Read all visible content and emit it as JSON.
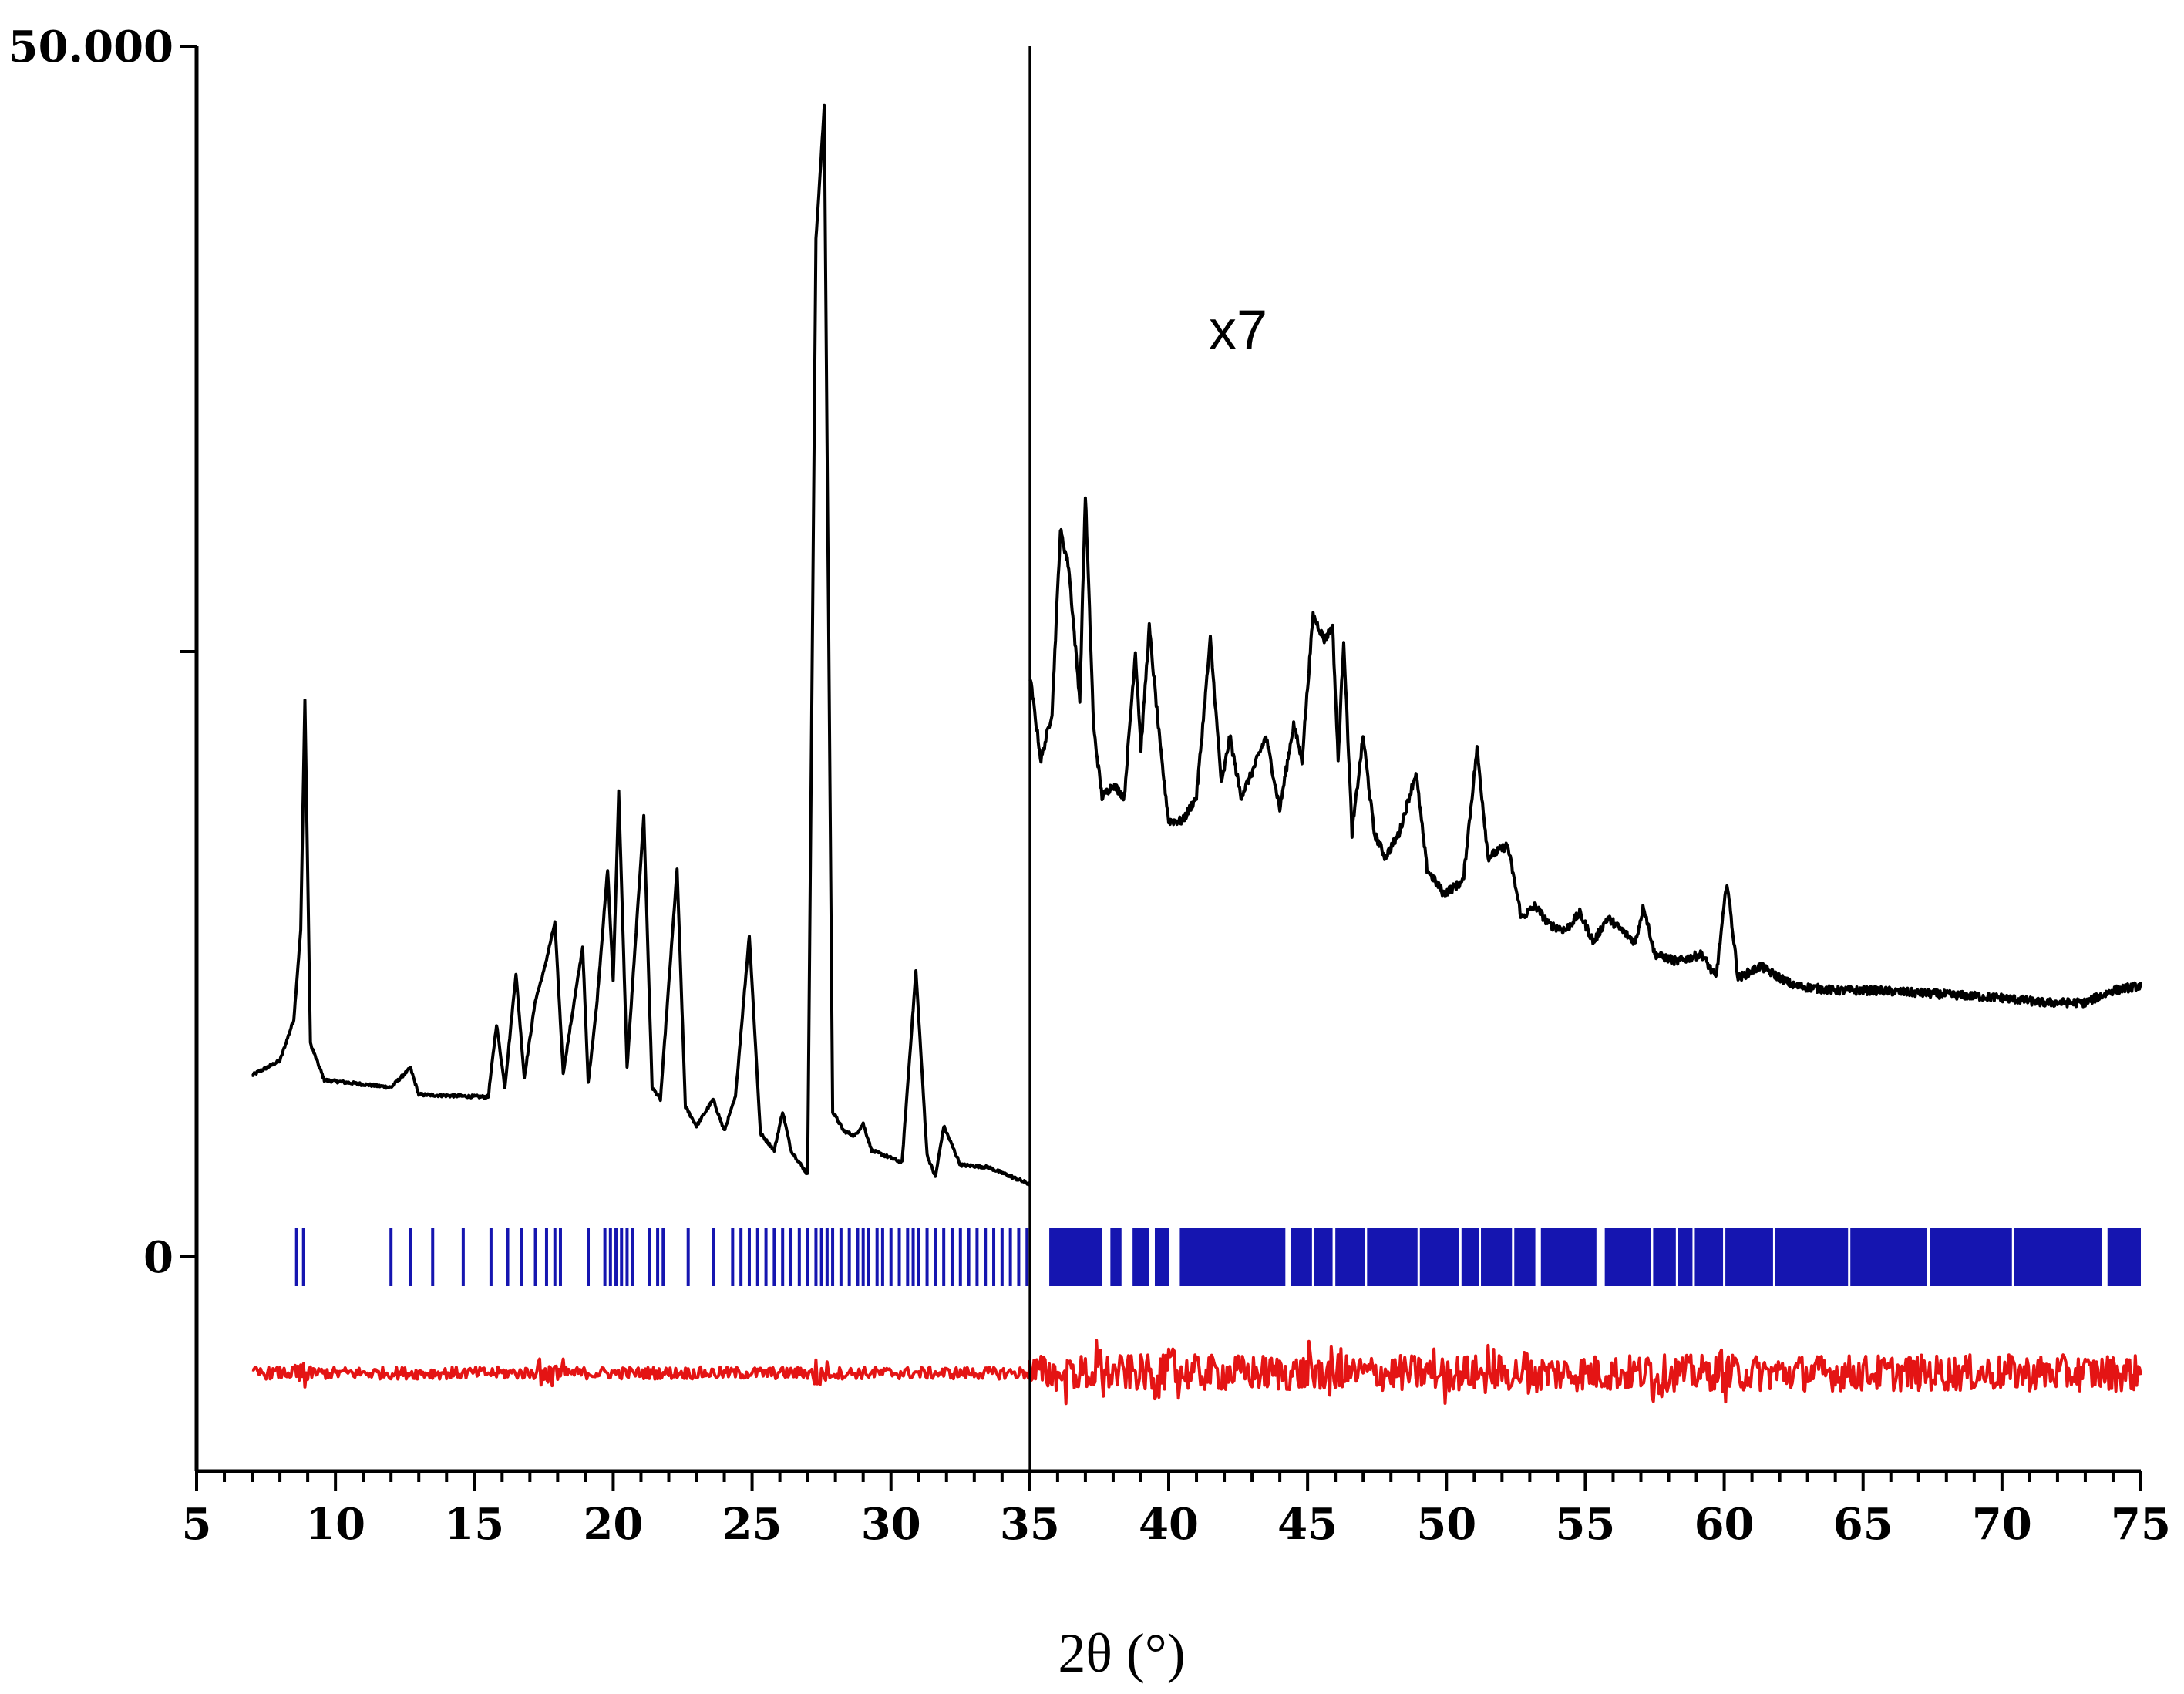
{
  "chart_data": {
    "type": "line",
    "title": "",
    "xlabel": "2θ (°)",
    "ylabel": "",
    "xlim": [
      5,
      75
    ],
    "ylim": [
      -9000,
      50000
    ],
    "x_ticks": [
      5,
      10,
      15,
      20,
      25,
      30,
      35,
      40,
      45,
      50,
      55,
      60,
      65,
      70,
      75
    ],
    "x_tick_labels": [
      "5",
      "10",
      "15",
      "20",
      "25",
      "30",
      "35",
      "40",
      "45",
      "50",
      "55",
      "60",
      "65",
      "70",
      "75"
    ],
    "y_ticks": [
      0,
      25000,
      50000
    ],
    "y_tick_labels": [
      "0",
      "",
      "50.000"
    ],
    "grid": false,
    "legend": "none",
    "colors": {
      "observed": "#000000",
      "reflections": "#1515b0",
      "difference": "#e41414",
      "divider": "#000000"
    },
    "annotations": [
      {
        "text": "x7",
        "x": 42.5,
        "y": 37500
      }
    ],
    "divider_x": 35,
    "series": [
      {
        "role": "observed",
        "x": [
          7,
          8,
          8.5,
          8.75,
          8.9,
          9.1,
          9.6,
          12,
          12.7,
          13,
          15.5,
          15.8,
          16.1,
          16.5,
          16.8,
          17.2,
          17.5,
          17.9,
          18.2,
          18.9,
          19.1,
          19.4,
          19.8,
          20.0,
          20.2,
          20.5,
          21.1,
          21.4,
          21.7,
          22.3,
          22.6,
          23,
          23.6,
          24.0,
          24.4,
          24.9,
          25.3,
          25.8,
          26.1,
          26.4,
          27.0,
          27.3,
          27.6,
          27.9,
          28.3,
          28.7,
          29.0,
          29.3,
          30.4,
          30.9,
          31.3,
          31.6,
          31.9,
          32.5,
          33.5,
          35
        ],
        "y": [
          7500,
          8100,
          9800,
          13500,
          23000,
          8800,
          7300,
          7000,
          7800,
          6700,
          6600,
          9600,
          7000,
          11700,
          7400,
          10600,
          11800,
          13800,
          7600,
          12800,
          7200,
          10300,
          16000,
          11400,
          19200,
          7800,
          18200,
          7000,
          6500,
          16000,
          6200,
          5400,
          6500,
          5200,
          6600,
          13300,
          5100,
          4400,
          6000,
          4400,
          3400,
          42000,
          47500,
          6000,
          5200,
          5000,
          5500,
          4400,
          3900,
          11800,
          4200,
          3300,
          5400,
          3800,
          3700,
          3000
        ]
      },
      {
        "role": "observed",
        "scale_note": "x7",
        "x": [
          35,
          35.4,
          35.8,
          36.1,
          36.4,
          36.8,
          37.0,
          37.3,
          37.6,
          38.0,
          38.4,
          38.8,
          39.0,
          39.3,
          39.7,
          40.0,
          40.5,
          41.0,
          41.5,
          41.9,
          42.2,
          42.6,
          43.0,
          43.5,
          44.0,
          44.5,
          44.8,
          45.2,
          45.6,
          45.9,
          46.1,
          46.3,
          46.6,
          47.0,
          47.4,
          47.8,
          48.3,
          48.9,
          49.3,
          49.9,
          50.6,
          51.1,
          51.5,
          52.2,
          52.7,
          53.2,
          53.7,
          54.3,
          54.8,
          55.3,
          55.8,
          56.3,
          56.8,
          57.1,
          57.5,
          58.3,
          59.2,
          59.7,
          60.1,
          60.5,
          61.3,
          62.5,
          64,
          65.5,
          67,
          68.5,
          70,
          71.5,
          73,
          74,
          75
        ],
        "y": [
          24000,
          20500,
          22500,
          30000,
          28500,
          23000,
          31500,
          21800,
          19000,
          19500,
          19000,
          25000,
          21000,
          26000,
          21000,
          18000,
          18000,
          19000,
          25500,
          19500,
          21500,
          19000,
          20000,
          21500,
          18500,
          22000,
          20500,
          26500,
          25500,
          26000,
          20500,
          25500,
          17500,
          21500,
          17500,
          16500,
          17500,
          20000,
          16000,
          15000,
          15500,
          21000,
          16500,
          17000,
          14000,
          14500,
          13700,
          13500,
          14200,
          13000,
          14000,
          13500,
          13000,
          14500,
          12500,
          12200,
          12500,
          11500,
          15500,
          11500,
          12000,
          11200,
          11000,
          11000,
          10900,
          10800,
          10700,
          10500,
          10500,
          11000,
          11200
        ]
      },
      {
        "role": "reflections",
        "y_center": 0,
        "positions": [
          8.6,
          8.85,
          12.0,
          12.7,
          13.5,
          14.6,
          15.6,
          16.2,
          16.7,
          17.2,
          17.6,
          17.9,
          18.1,
          19.1,
          19.7,
          19.9,
          20.1,
          20.3,
          20.5,
          20.7,
          21.3,
          21.6,
          21.8,
          22.7,
          23.6,
          24.3,
          24.6,
          24.9,
          25.2,
          25.5,
          25.8,
          26.1,
          26.4,
          26.7,
          27.0,
          27.3,
          27.5,
          27.7,
          27.9,
          28.2,
          28.5,
          28.8,
          29.0,
          29.2,
          29.5,
          29.7,
          30.0,
          30.3,
          30.6,
          30.8,
          31.0,
          31.3,
          31.6,
          31.9,
          32.2,
          32.5,
          32.8,
          33.1,
          33.4,
          33.7,
          34.0,
          34.3,
          34.6,
          34.9
        ],
        "dense_blocks": [
          [
            35.7,
            37.6
          ],
          [
            37.9,
            38.3
          ],
          [
            38.7,
            39.3
          ],
          [
            39.5,
            40.0
          ],
          [
            40.4,
            44.2
          ],
          [
            44.4,
            45.9
          ],
          [
            46.0,
            53.2
          ],
          [
            53.4,
            55.4
          ],
          [
            55.7,
            67.3
          ],
          [
            67.4,
            73.6
          ],
          [
            73.8,
            75
          ]
        ],
        "gaps_in_blocks": [
          45.2,
          47.1,
          49.0,
          50.5,
          51.2,
          52.4,
          57.4,
          58.3,
          58.9,
          60.0,
          61.8,
          64.5,
          70.4
        ]
      },
      {
        "role": "difference",
        "y_center": -4800,
        "amplitude": 250
      }
    ]
  }
}
